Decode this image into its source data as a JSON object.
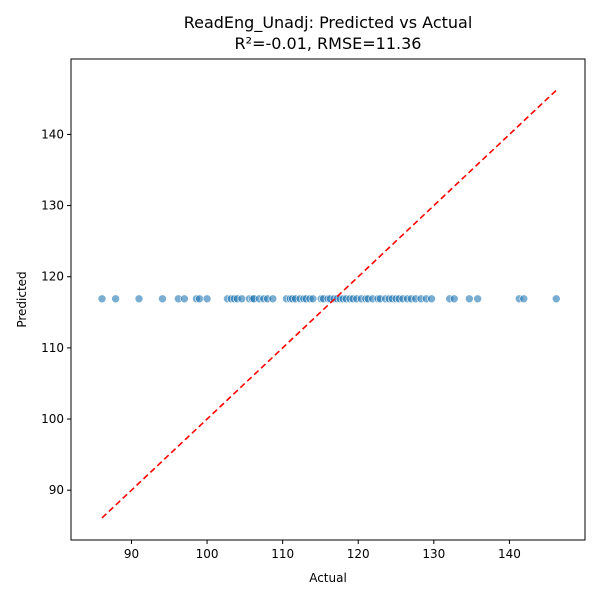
{
  "chart_data": {
    "type": "scatter",
    "title": "ReadEng_Unadj: Predicted vs Actual",
    "subtitle": "R²=-0.01, RMSE=11.36",
    "xlabel": "Actual",
    "ylabel": "Predicted",
    "xlim": [
      82.0,
      150.0
    ],
    "ylim": [
      83.0,
      150.6
    ],
    "xticks": [
      90,
      100,
      110,
      120,
      130,
      140
    ],
    "yticks": [
      90,
      100,
      110,
      120,
      130,
      140
    ],
    "grid": false,
    "colors": {
      "points": "#1f77b4",
      "reference_line": "#ff0000",
      "axes": "#000000"
    },
    "reference_line": {
      "style": "dashed",
      "from": [
        86.1,
        86.1
      ],
      "to": [
        146.2,
        146.2
      ]
    },
    "points": {
      "y": 116.9,
      "x": [
        86.1,
        87.9,
        91.0,
        94.1,
        96.2,
        97.0,
        98.6,
        99.0,
        100.0,
        102.7,
        103.2,
        103.6,
        104.0,
        104.6,
        105.6,
        106.0,
        106.2,
        106.9,
        107.5,
        108.0,
        108.7,
        110.5,
        111.0,
        111.3,
        111.7,
        112.3,
        112.8,
        113.1,
        113.6,
        114.0,
        115.1,
        115.4,
        116.0,
        116.3,
        116.8,
        117.2,
        117.6,
        118.0,
        118.4,
        118.9,
        119.3,
        119.8,
        120.4,
        121.0,
        121.3,
        121.9,
        122.6,
        122.9,
        123.6,
        124.1,
        124.5,
        125.0,
        125.4,
        125.9,
        126.5,
        127.0,
        127.6,
        128.3,
        129.0,
        129.7,
        132.1,
        132.7,
        134.7,
        135.8,
        141.3,
        141.9,
        146.2
      ]
    }
  }
}
